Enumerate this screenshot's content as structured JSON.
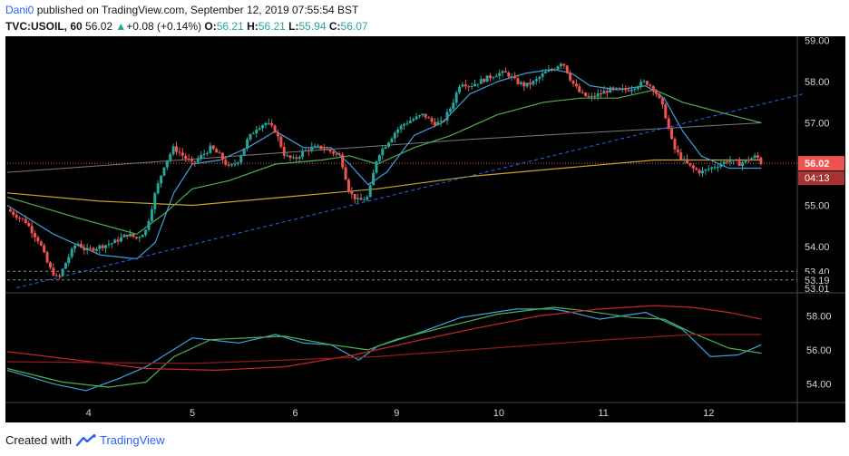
{
  "header": {
    "author": "Dani0",
    "published_text": "published on TradingView.com, September 12, 2019 07:55:54 BST",
    "symbol": "TVC:USOIL, 60",
    "last_price": "56.02",
    "change_text": "+0.08 (+0.14%)",
    "o_label": "O:",
    "o_value": "56.21",
    "h_label": "H:",
    "h_value": "56.21",
    "l_label": "L:",
    "l_value": "55.94",
    "c_label": "C:",
    "c_value": "56.07"
  },
  "footer": {
    "created_with": "Created with",
    "brand": "TradingView"
  },
  "colors": {
    "bull": "#26a69a",
    "bear": "#ef5350",
    "blue": "#3f9fd9",
    "green": "#4caf50",
    "gold": "#c7a52e",
    "gray": "#7a7a7a",
    "red": "#c62828",
    "darkred": "#8e1b1b",
    "trend": "#2962ff"
  },
  "chart_data": [
    {
      "type": "candlestick",
      "symbol": "TVC:USOIL",
      "interval": "60",
      "x_tick_labels": [
        "4",
        "5",
        "6",
        "9",
        "10",
        "11",
        "12"
      ],
      "y_tick_labels": [
        "59.00",
        "58.00",
        "57.00",
        "56.00",
        "55.00",
        "54.00",
        "53.40",
        "53.19",
        "53.01"
      ],
      "ylim": [
        52.9,
        59.1
      ],
      "price_marker": {
        "value": 56.02,
        "label": "56.02",
        "countdown": "04:13"
      },
      "horizontal_levels": [
        53.4,
        53.19
      ],
      "close_path": [
        [
          0,
          54.9
        ],
        [
          8,
          54.6
        ],
        [
          14,
          54.1
        ],
        [
          18,
          53.5
        ],
        [
          22,
          53.2
        ],
        [
          26,
          53.7
        ],
        [
          30,
          54.1
        ],
        [
          34,
          53.9
        ],
        [
          40,
          54.0
        ],
        [
          46,
          54.1
        ],
        [
          52,
          54.3
        ],
        [
          56,
          54.2
        ],
        [
          60,
          54.4
        ],
        [
          64,
          55.3
        ],
        [
          68,
          56.0
        ],
        [
          72,
          56.4
        ],
        [
          76,
          56.2
        ],
        [
          80,
          56.0
        ],
        [
          84,
          56.2
        ],
        [
          88,
          56.4
        ],
        [
          92,
          56.2
        ],
        [
          96,
          55.9
        ],
        [
          100,
          56.1
        ],
        [
          104,
          56.6
        ],
        [
          108,
          56.9
        ],
        [
          112,
          57.0
        ],
        [
          116,
          56.8
        ],
        [
          120,
          56.2
        ],
        [
          124,
          56.1
        ],
        [
          128,
          56.3
        ],
        [
          132,
          56.4
        ],
        [
          136,
          56.4
        ],
        [
          140,
          56.3
        ],
        [
          144,
          56.2
        ],
        [
          148,
          55.3
        ],
        [
          152,
          55.1
        ],
        [
          156,
          55.2
        ],
        [
          160,
          56.2
        ],
        [
          164,
          56.5
        ],
        [
          168,
          56.8
        ],
        [
          172,
          57.0
        ],
        [
          176,
          57.1
        ],
        [
          180,
          57.2
        ],
        [
          184,
          57.0
        ],
        [
          188,
          57.0
        ],
        [
          192,
          57.4
        ],
        [
          196,
          58.0
        ],
        [
          200,
          57.9
        ],
        [
          204,
          58.0
        ],
        [
          208,
          58.1
        ],
        [
          212,
          58.2
        ],
        [
          216,
          58.2
        ],
        [
          220,
          58.0
        ],
        [
          224,
          57.9
        ],
        [
          228,
          58.0
        ],
        [
          232,
          58.2
        ],
        [
          236,
          58.3
        ],
        [
          240,
          58.5
        ],
        [
          244,
          58.0
        ],
        [
          248,
          57.7
        ],
        [
          252,
          57.6
        ],
        [
          256,
          57.7
        ],
        [
          260,
          57.8
        ],
        [
          264,
          57.8
        ],
        [
          268,
          57.8
        ],
        [
          272,
          57.9
        ],
        [
          276,
          58.0
        ],
        [
          280,
          57.8
        ],
        [
          284,
          57.3
        ],
        [
          288,
          56.4
        ],
        [
          292,
          56.1
        ],
        [
          296,
          55.9
        ],
        [
          300,
          55.8
        ],
        [
          304,
          55.9
        ],
        [
          308,
          56.0
        ],
        [
          312,
          56.1
        ],
        [
          316,
          56.0
        ],
        [
          320,
          56.1
        ],
        [
          324,
          56.2
        ],
        [
          326,
          56.02
        ]
      ],
      "indicators": {
        "ma_blue_fast": [
          [
            0,
            55.0
          ],
          [
            20,
            54.3
          ],
          [
            40,
            53.8
          ],
          [
            56,
            53.7
          ],
          [
            64,
            54.1
          ],
          [
            72,
            55.3
          ],
          [
            80,
            56.0
          ],
          [
            92,
            56.1
          ],
          [
            104,
            56.4
          ],
          [
            116,
            56.8
          ],
          [
            128,
            56.4
          ],
          [
            140,
            56.4
          ],
          [
            148,
            56.0
          ],
          [
            156,
            55.5
          ],
          [
            164,
            55.8
          ],
          [
            176,
            56.7
          ],
          [
            188,
            57.0
          ],
          [
            200,
            57.7
          ],
          [
            212,
            58.0
          ],
          [
            224,
            58.2
          ],
          [
            236,
            58.3
          ],
          [
            244,
            58.2
          ],
          [
            252,
            57.9
          ],
          [
            264,
            57.8
          ],
          [
            276,
            57.9
          ],
          [
            284,
            57.6
          ],
          [
            292,
            56.8
          ],
          [
            300,
            56.2
          ],
          [
            312,
            55.9
          ],
          [
            326,
            55.9
          ]
        ],
        "ma_green": [
          [
            0,
            55.2
          ],
          [
            30,
            54.7
          ],
          [
            56,
            54.3
          ],
          [
            68,
            54.8
          ],
          [
            80,
            55.4
          ],
          [
            96,
            55.6
          ],
          [
            116,
            56.0
          ],
          [
            136,
            56.1
          ],
          [
            148,
            56.2
          ],
          [
            160,
            56.0
          ],
          [
            176,
            56.4
          ],
          [
            192,
            56.7
          ],
          [
            212,
            57.2
          ],
          [
            232,
            57.5
          ],
          [
            248,
            57.6
          ],
          [
            264,
            57.6
          ],
          [
            280,
            57.8
          ],
          [
            292,
            57.5
          ],
          [
            312,
            57.2
          ],
          [
            326,
            57.0
          ]
        ],
        "ma_gold": [
          [
            0,
            55.3
          ],
          [
            40,
            55.1
          ],
          [
            80,
            55.0
          ],
          [
            120,
            55.2
          ],
          [
            160,
            55.4
          ],
          [
            200,
            55.7
          ],
          [
            240,
            55.9
          ],
          [
            280,
            56.1
          ],
          [
            300,
            56.1
          ],
          [
            326,
            56.1
          ]
        ],
        "ma_gray": [
          [
            0,
            55.8
          ],
          [
            100,
            56.2
          ],
          [
            200,
            56.6
          ],
          [
            326,
            57.0
          ]
        ],
        "trendline": [
          [
            4,
            53.0
          ],
          [
            344,
            57.7
          ]
        ]
      }
    },
    {
      "type": "line",
      "panel": "lower",
      "y_tick_labels": [
        "58.00",
        "56.00",
        "54.00"
      ],
      "ylim": [
        52.9,
        59.3
      ],
      "series": [
        {
          "values": [
            [
              0,
              54.8
            ],
            [
              20,
              54.0
            ],
            [
              34,
              53.6
            ],
            [
              48,
              54.3
            ],
            [
              60,
              55.0
            ],
            [
              80,
              56.7
            ],
            [
              100,
              56.4
            ],
            [
              116,
              56.9
            ],
            [
              128,
              56.4
            ],
            [
              140,
              56.3
            ],
            [
              152,
              55.4
            ],
            [
              160,
              56.2
            ],
            [
              176,
              56.9
            ],
            [
              196,
              57.9
            ],
            [
              220,
              58.4
            ],
            [
              236,
              58.4
            ],
            [
              244,
              58.2
            ],
            [
              256,
              57.8
            ],
            [
              276,
              58.2
            ],
            [
              292,
              57.2
            ],
            [
              304,
              55.6
            ],
            [
              316,
              55.7
            ],
            [
              326,
              56.3
            ]
          ]
        },
        {
          "values": [
            [
              0,
              54.9
            ],
            [
              24,
              54.1
            ],
            [
              44,
              53.8
            ],
            [
              60,
              54.1
            ],
            [
              72,
              55.6
            ],
            [
              88,
              56.6
            ],
            [
              120,
              56.8
            ],
            [
              140,
              56.3
            ],
            [
              156,
              56.0
            ],
            [
              168,
              56.6
            ],
            [
              188,
              57.3
            ],
            [
              212,
              58.1
            ],
            [
              236,
              58.5
            ],
            [
              250,
              58.3
            ],
            [
              270,
              57.9
            ],
            [
              284,
              57.8
            ],
            [
              296,
              57.0
            ],
            [
              312,
              56.1
            ],
            [
              326,
              55.8
            ]
          ]
        },
        {
          "values": [
            [
              0,
              55.9
            ],
            [
              30,
              55.4
            ],
            [
              60,
              54.9
            ],
            [
              90,
              54.8
            ],
            [
              120,
              55.0
            ],
            [
              150,
              55.7
            ],
            [
              176,
              56.5
            ],
            [
              200,
              57.2
            ],
            [
              230,
              58.0
            ],
            [
              256,
              58.4
            ],
            [
              280,
              58.6
            ],
            [
              296,
              58.5
            ],
            [
              312,
              58.2
            ],
            [
              326,
              57.8
            ]
          ]
        },
        {
          "values": [
            [
              0,
              55.3
            ],
            [
              80,
              55.2
            ],
            [
              160,
              55.6
            ],
            [
              220,
              56.2
            ],
            [
              260,
              56.6
            ],
            [
              296,
              56.9
            ],
            [
              326,
              56.9
            ]
          ]
        }
      ]
    }
  ]
}
